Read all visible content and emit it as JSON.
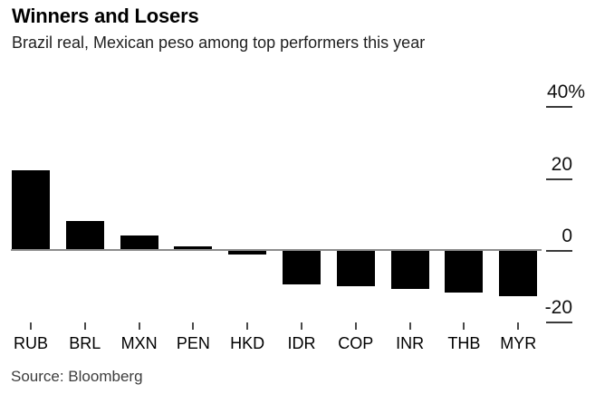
{
  "header": {
    "title": "Winners and Losers",
    "subtitle": "Brazil real, Mexican peso among top performers this year"
  },
  "footer": {
    "source": "Source: Bloomberg"
  },
  "chart_data": {
    "type": "bar",
    "title": "Winners and Losers",
    "subtitle": "Brazil real, Mexican peso among top performers this year",
    "categories": [
      "RUB",
      "BRL",
      "MXN",
      "PEN",
      "HKD",
      "IDR",
      "COP",
      "INR",
      "THB",
      "MYR"
    ],
    "values": [
      22.4,
      8.3,
      4.3,
      1.3,
      -1.0,
      -9.2,
      -9.9,
      -10.5,
      -11.5,
      -12.6
    ],
    "unit": "%",
    "xlabel": "",
    "ylabel": "",
    "ylim": [
      -25,
      45
    ],
    "grid": false,
    "legend": false,
    "y_axis": {
      "side": "right",
      "ticks": [
        40,
        20,
        0,
        -20
      ],
      "tick_labels": [
        "40%",
        "20",
        "0",
        "-20"
      ]
    },
    "bar_color": "#000000",
    "zero_line_color": "#8c8c8c",
    "source": "Source: Bloomberg"
  },
  "colors": {
    "background": "#ffffff",
    "bar": "#000000",
    "zero_line": "#8c8c8c",
    "axis_tick": "#3a3a3a",
    "title_text": "#000000",
    "subtitle_text": "#1f1f1f",
    "axis_label_text": "#111111",
    "source_text": "#3d3d3d"
  }
}
